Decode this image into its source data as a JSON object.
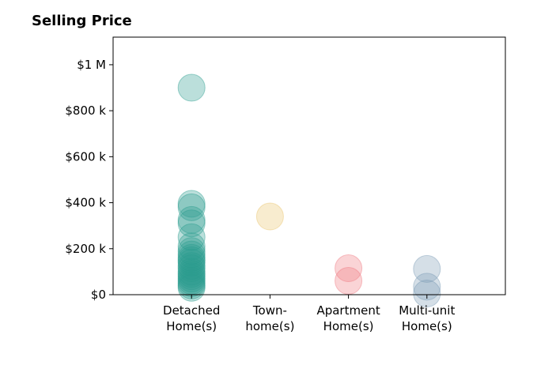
{
  "chart_data": {
    "type": "scatter",
    "title": "Selling Price",
    "xlabel": "",
    "ylabel": "",
    "categories": [
      {
        "line1": "Detached",
        "line2": "Home(s)"
      },
      {
        "line1": "Town-",
        "line2": "home(s)"
      },
      {
        "line1": "Apartment",
        "line2": "Home(s)"
      },
      {
        "line1": "Multi-unit",
        "line2": "Home(s)"
      }
    ],
    "ylim": [
      0,
      1120000
    ],
    "yticks": [
      {
        "value": 0,
        "label": "$0"
      },
      {
        "value": 200000,
        "label": "$200 k"
      },
      {
        "value": 400000,
        "label": "$400 k"
      },
      {
        "value": 600000,
        "label": "$600 k"
      },
      {
        "value": 800000,
        "label": "$800 k"
      },
      {
        "value": 1000000,
        "label": "$1 M"
      }
    ],
    "grid": false,
    "series": [
      {
        "category": "Detached Home(s)",
        "color": "#2a9d8f",
        "values": [
          900000,
          395000,
          380000,
          325000,
          310000,
          250000,
          210000,
          190000,
          175000,
          160000,
          150000,
          140000,
          125000,
          115000,
          100000,
          90000,
          80000,
          70000,
          60000,
          50000,
          40000,
          30000
        ]
      },
      {
        "category": "Town-home(s)",
        "color": "#e9c46a",
        "values": [
          340000
        ]
      },
      {
        "category": "Apartment Home(s)",
        "color": "#f07880",
        "values": [
          115000,
          60000
        ]
      },
      {
        "category": "Multi-unit Home(s)",
        "color": "#7b9bb5",
        "values": [
          112000,
          35000,
          5000
        ]
      }
    ]
  }
}
